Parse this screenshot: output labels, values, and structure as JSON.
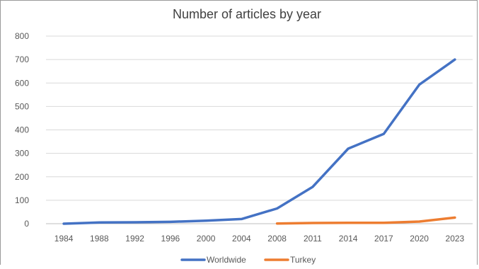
{
  "chart_data": {
    "type": "line",
    "title": "Number of articles by year",
    "xlabel": "",
    "ylabel": "",
    "categories": [
      "1984",
      "1988",
      "1992",
      "1996",
      "2000",
      "2004",
      "2008",
      "2011",
      "2014",
      "2017",
      "2020",
      "2023"
    ],
    "yticks": [
      "0",
      "100",
      "200",
      "300",
      "400",
      "500",
      "600",
      "700",
      "800"
    ],
    "ylim": [
      0,
      800
    ],
    "grid": true,
    "legend_position": "bottom",
    "series": [
      {
        "name": "Worldwide",
        "color": "#4472C4",
        "values": [
          0,
          5,
          6,
          8,
          13,
          20,
          65,
          157,
          320,
          383,
          593,
          700
        ]
      },
      {
        "name": "Turkey",
        "color": "#ED7D31",
        "values": [
          null,
          null,
          null,
          null,
          null,
          null,
          1,
          3,
          4,
          4,
          9,
          26
        ]
      }
    ]
  }
}
